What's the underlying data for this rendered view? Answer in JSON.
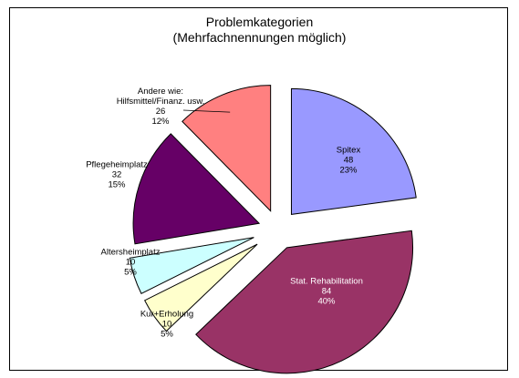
{
  "chart_data": {
    "type": "pie",
    "title": "Problemkategorien",
    "subtitle": "(Mehrfachnennungen möglich)",
    "categories": [
      "Spitex",
      "Stat. Rehabilitation",
      "Kur+Erholung",
      "Altersheimplatz",
      "Pflegeheimplatz",
      "Andere wie:\nHilfsmittel/Finanz. usw."
    ],
    "values": [
      48,
      84,
      10,
      10,
      32,
      26
    ],
    "percent_labels": [
      "23%",
      "40%",
      "5%",
      "5%",
      "15%",
      "12%"
    ],
    "colors": [
      "#9999ff",
      "#993366",
      "#ffffcc",
      "#ccffff",
      "#660066",
      "#ff8080"
    ]
  }
}
